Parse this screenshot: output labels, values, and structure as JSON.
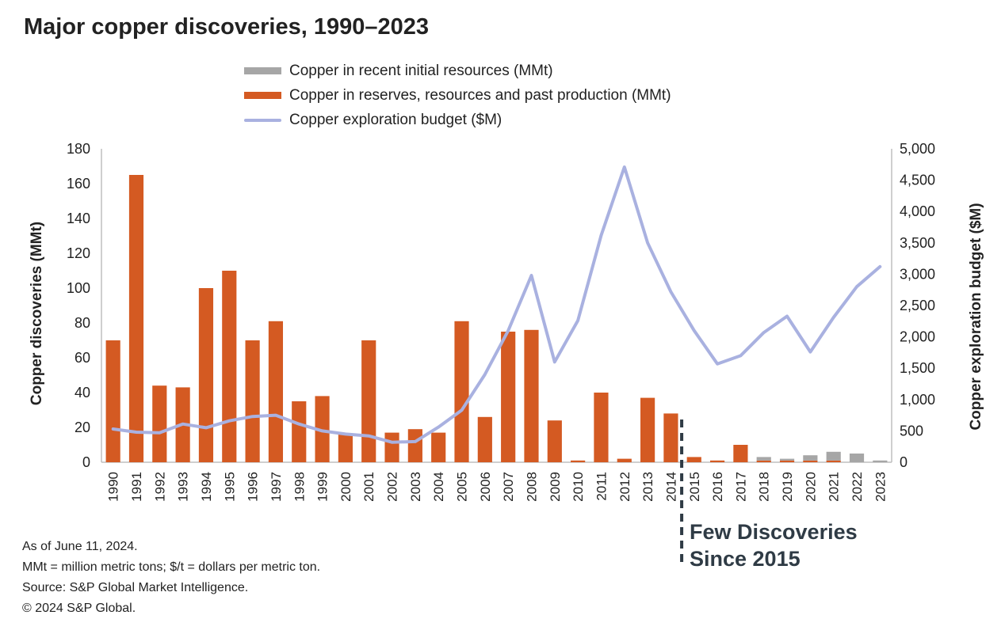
{
  "chart_data": {
    "type": "bar",
    "title": "Major copper discoveries, 1990–2023",
    "categories": [
      "1990",
      "1991",
      "1992",
      "1993",
      "1994",
      "1995",
      "1996",
      "1997",
      "1998",
      "1999",
      "2000",
      "2001",
      "2002",
      "2003",
      "2004",
      "2005",
      "2006",
      "2007",
      "2008",
      "2009",
      "2010",
      "2011",
      "2012",
      "2013",
      "2014",
      "2015",
      "2016",
      "2017",
      "2018",
      "2019",
      "2020",
      "2021",
      "2022",
      "2023"
    ],
    "series": [
      {
        "name": "Copper in recent initial resources (MMt)",
        "kind": "bar",
        "axis": "left",
        "color": "#a6a6a6",
        "values": [
          0,
          0,
          0,
          0,
          0,
          0,
          0,
          0,
          0,
          0,
          0,
          0,
          0,
          0,
          0,
          0,
          0,
          0,
          0,
          0,
          0,
          0,
          0,
          0,
          0,
          0,
          0,
          0,
          2,
          1,
          3,
          5,
          5,
          1
        ]
      },
      {
        "name": "Copper in reserves, resources and past production (MMt)",
        "kind": "bar",
        "axis": "left",
        "color": "#d45a22",
        "values": [
          70,
          165,
          44,
          43,
          100,
          110,
          70,
          81,
          35,
          38,
          16,
          70,
          17,
          19,
          17,
          81,
          26,
          75,
          76,
          24,
          1,
          40,
          2,
          37,
          28,
          3,
          1,
          10,
          1,
          1,
          1,
          1,
          0,
          0
        ]
      },
      {
        "name": "Copper exploration budget ($M)",
        "kind": "line",
        "axis": "right",
        "color": "#a9b1e0",
        "values": [
          530,
          480,
          470,
          610,
          550,
          660,
          730,
          750,
          610,
          500,
          450,
          420,
          320,
          330,
          560,
          830,
          1400,
          2100,
          2980,
          1600,
          2260,
          3620,
          4710,
          3500,
          2720,
          2100,
          1570,
          1700,
          2070,
          2330,
          1760,
          2310,
          2800,
          3120
        ]
      }
    ],
    "ylabel": "Copper discoveries (MMt)",
    "y2label": "Copper exploration budget ($M)",
    "ylim": [
      0,
      180
    ],
    "y2lim": [
      0,
      5000
    ],
    "yticks": [
      "0",
      "20",
      "40",
      "60",
      "80",
      "100",
      "120",
      "140",
      "160",
      "180"
    ],
    "y2ticks": [
      "0",
      "500",
      "1,000",
      "1,500",
      "2,000",
      "2,500",
      "3,000",
      "3,500",
      "4,000",
      "4,500",
      "5,000"
    ],
    "legend_position": "top-center",
    "grid": false,
    "annotation": {
      "line1": "Few Discoveries",
      "line2": "Since 2015",
      "at": "2015"
    }
  },
  "notes": [
    "As of June 11, 2024.",
    "MMt = million metric tons; $/t = dollars per metric ton.",
    "Source: S&P Global Market Intelligence.",
    "© 2024 S&P Global."
  ]
}
